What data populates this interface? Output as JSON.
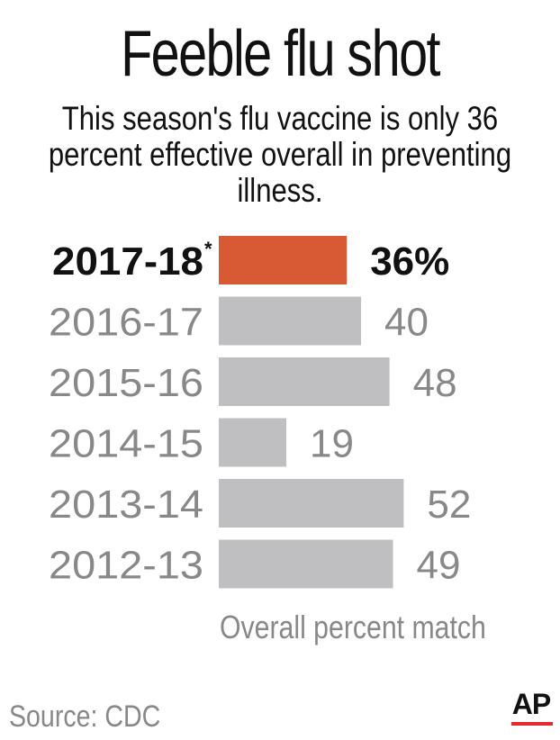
{
  "title": "Feeble flu shot",
  "subtitle": "This season's flu vaccine is only 36 percent effective overall in preventing illness.",
  "source": "Source: CDC",
  "logo": "AP",
  "colors": {
    "highlight": "#D85A35",
    "bar": "#BFBFC1",
    "muted_text": "#888888",
    "text": "#111111",
    "logo_underline": "#E4292F"
  },
  "chart_data": {
    "type": "bar",
    "orientation": "horizontal",
    "title": "Feeble flu shot",
    "xlabel": "Overall percent match",
    "ylabel": "",
    "categories": [
      "2017-18",
      "2016-17",
      "2015-16",
      "2014-15",
      "2013-14",
      "2012-13"
    ],
    "category_marks": [
      "*",
      "",
      "",
      "",
      "",
      ""
    ],
    "values": [
      36,
      40,
      48,
      19,
      52,
      49
    ],
    "value_labels": [
      "36%",
      "40",
      "48",
      "19",
      "52",
      "49"
    ],
    "highlighted": [
      true,
      false,
      false,
      false,
      false,
      false
    ],
    "grid": false,
    "legend": "none"
  }
}
